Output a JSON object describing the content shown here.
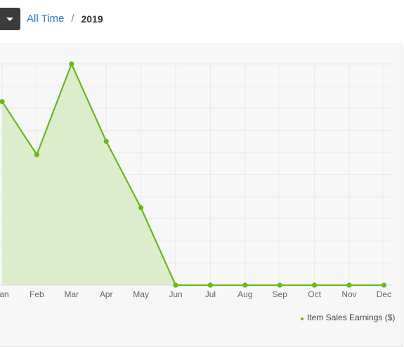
{
  "breadcrumb": {
    "items": [
      "All Time",
      "2019"
    ],
    "separator": "/"
  },
  "colors": {
    "series": "#6ab621",
    "fill": "#dcedcc",
    "grid": "#e9e9e9",
    "link": "#2a7ab8"
  },
  "chart_data": {
    "type": "area",
    "categories": [
      "Jan",
      "Feb",
      "Mar",
      "Apr",
      "May",
      "Jun",
      "Jul",
      "Aug",
      "Sep",
      "Oct",
      "Nov",
      "Dec"
    ],
    "series": [
      {
        "name": "Item Sales Earnings ($)",
        "values": [
          83,
          59,
          100,
          65,
          35,
          0,
          0,
          0,
          0,
          0,
          0,
          0
        ]
      }
    ],
    "ylim": [
      0,
      100
    ],
    "grid": true,
    "legend": "bottom-right"
  }
}
